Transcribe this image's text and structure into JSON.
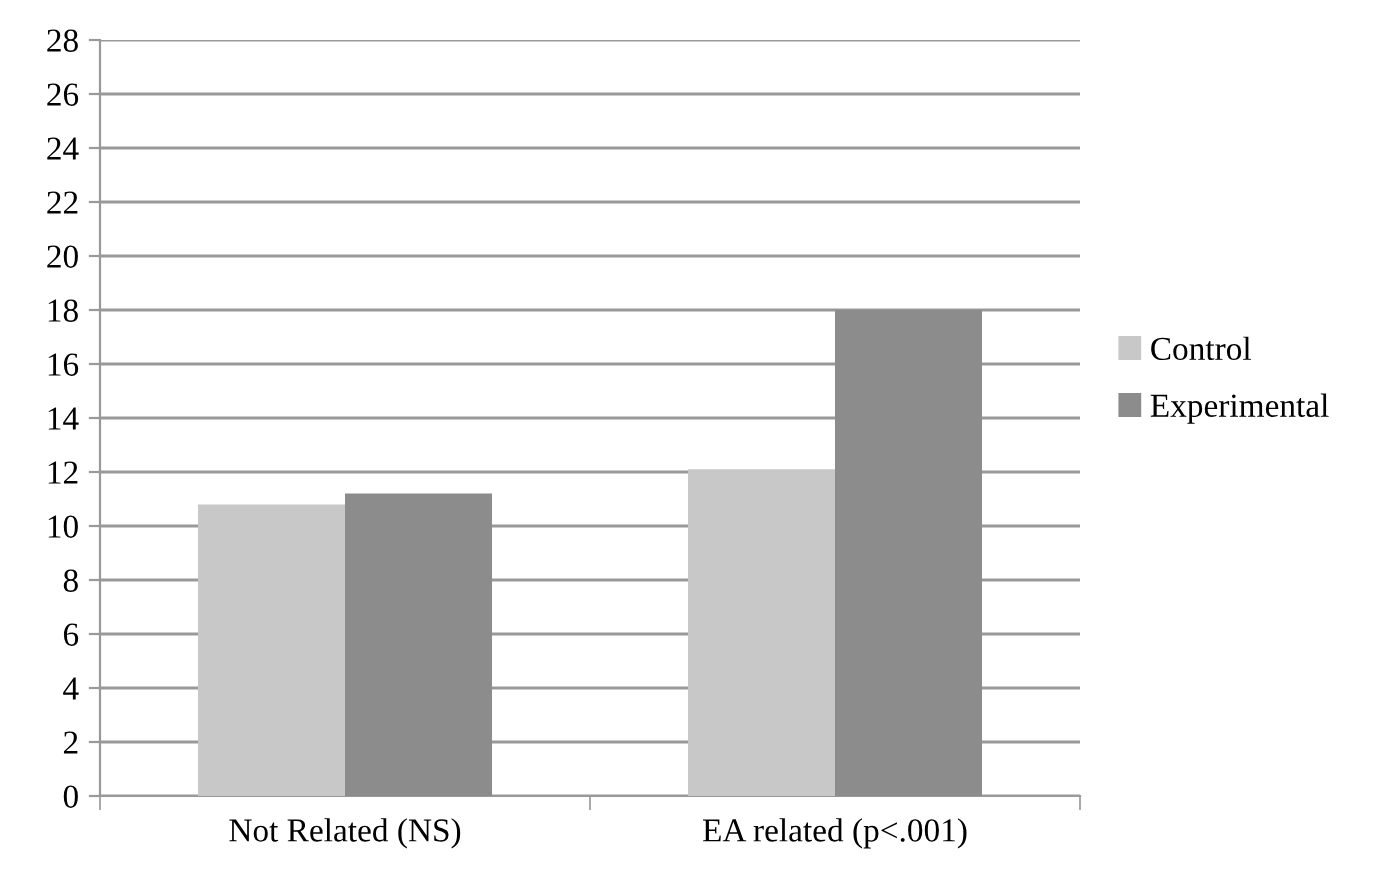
{
  "chart_data": {
    "type": "bar",
    "categories": [
      "Not Related (NS)",
      "EA related (p<.001)"
    ],
    "series": [
      {
        "name": "Control",
        "color": "#c8c8c8",
        "values": [
          10.8,
          12.1
        ]
      },
      {
        "name": "Experimental",
        "color": "#8c8c8c",
        "values": [
          11.2,
          18
        ]
      }
    ],
    "ylim": [
      0,
      28
    ],
    "yticks": [
      0,
      2,
      4,
      6,
      8,
      10,
      12,
      14,
      16,
      18,
      20,
      22,
      24,
      26,
      28
    ],
    "grid": "y",
    "legend": "right"
  }
}
